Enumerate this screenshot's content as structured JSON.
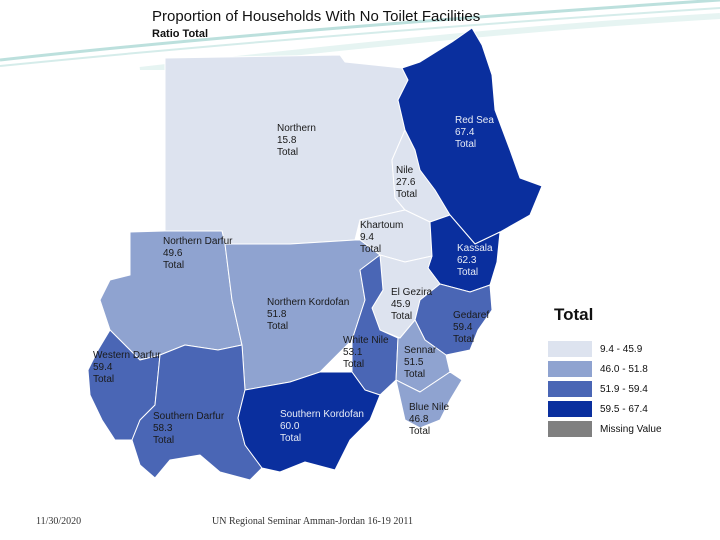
{
  "title": "Proportion  of Households With No Toilet Facilities",
  "subtitle": "Ratio Total",
  "map": {
    "states": [
      {
        "key": "northern",
        "name": "Northern",
        "value": "15.8",
        "unit": "Total",
        "class": 1
      },
      {
        "key": "nile",
        "name": "Nile",
        "value": "27.6",
        "unit": "Total",
        "class": 1
      },
      {
        "key": "red_sea",
        "name": "Red Sea",
        "value": "67.4",
        "unit": "Total",
        "class": 4
      },
      {
        "key": "khartoum",
        "name": "Khartoum",
        "value": "9.4",
        "unit": "Total",
        "class": 1
      },
      {
        "key": "kassala",
        "name": "Kassala",
        "value": "62.3",
        "unit": "Total",
        "class": 4
      },
      {
        "key": "northern_darfur",
        "name": "Northern Darfur",
        "value": "49.6",
        "unit": "Total",
        "class": 2
      },
      {
        "key": "northern_kordofan",
        "name": "Northern Kordofan",
        "value": "51.8",
        "unit": "Total",
        "class": 2
      },
      {
        "key": "el_gezira",
        "name": "El Gezira",
        "value": "45.9",
        "unit": "Total",
        "class": 1
      },
      {
        "key": "gedaref",
        "name": "Gedaref",
        "value": "59.4",
        "unit": "Total",
        "class": 3
      },
      {
        "key": "white_nile",
        "name": "White Nile",
        "value": "53.1",
        "unit": "Total",
        "class": 3
      },
      {
        "key": "sennar",
        "name": "Sennar",
        "value": "51.5",
        "unit": "Total",
        "class": 2
      },
      {
        "key": "western_darfur",
        "name": "Western Darfur",
        "value": "59.4",
        "unit": "Total",
        "class": 3
      },
      {
        "key": "southern_darfur",
        "name": "Southern Darfur",
        "value": "58.3",
        "unit": "Total",
        "class": 3
      },
      {
        "key": "southern_kordofan",
        "name": "Southern Kordofan",
        "value": "60.0",
        "unit": "Total",
        "class": 4
      },
      {
        "key": "blue_nile",
        "name": "Blue Nile",
        "value": "46.8",
        "unit": "Total",
        "class": 2
      }
    ]
  },
  "legend": {
    "title": "Total",
    "items": [
      {
        "label": "9.4 - 45.9",
        "color": "#dde3ef"
      },
      {
        "label": "46.0 - 51.8",
        "color": "#8fa3d0"
      },
      {
        "label": "51.9 - 59.4",
        "color": "#4a66b5"
      },
      {
        "label": "59.5 - 67.4",
        "color": "#0a2f9e"
      },
      {
        "label": "Missing Value",
        "color": "#808080"
      }
    ]
  },
  "footer": {
    "date": "11/30/2020",
    "event": "UN Regional Seminar  Amman-Jordan 16-19 2011"
  }
}
